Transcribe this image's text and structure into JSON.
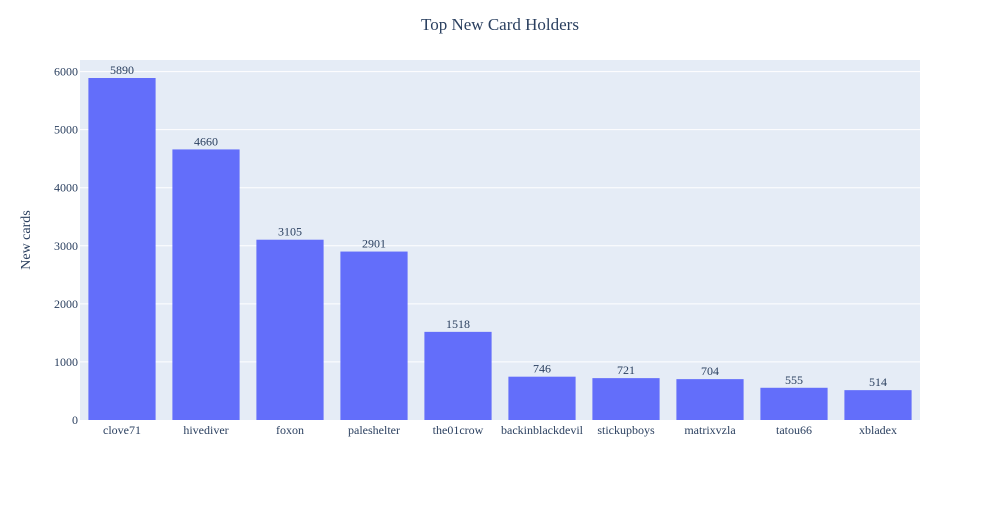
{
  "chart_data": {
    "type": "bar",
    "title": "Top New Card Holders",
    "xlabel": "",
    "ylabel": "New cards",
    "categories": [
      "clove71",
      "hivediver",
      "foxon",
      "paleshelter",
      "the01crow",
      "backinblackdevil",
      "stickupboys",
      "matrixvzla",
      "tatou66",
      "xbladex"
    ],
    "values": [
      5890,
      4660,
      3105,
      2901,
      1518,
      746,
      721,
      704,
      555,
      514
    ],
    "ylim": [
      0,
      6200
    ],
    "yticks": [
      0,
      1000,
      2000,
      3000,
      4000,
      5000,
      6000
    ],
    "data_labels": true,
    "grid": true,
    "legend": "none"
  },
  "colors": {
    "bar": "#636efa",
    "plot_background": "#e5ecf6",
    "grid": "#ffffff",
    "text": "#2a3f5f"
  }
}
